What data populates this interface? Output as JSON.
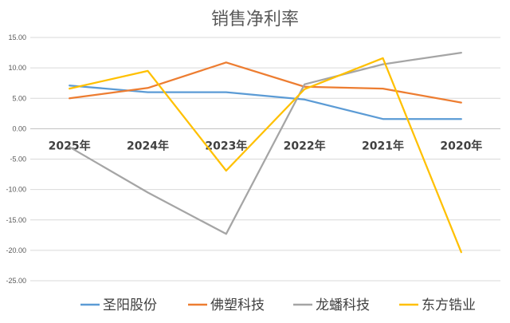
{
  "chart_data": {
    "type": "line",
    "title": "销售净利率",
    "categories": [
      "2025年",
      "2024年",
      "2023年",
      "2022年",
      "2021年",
      "2020年"
    ],
    "ylim": [
      -25,
      15
    ],
    "yticks": [
      "15.00",
      "10.00",
      "5.00",
      "0.00",
      "-5.00",
      "-10.00",
      "-15.00",
      "-20.00",
      "-25.00"
    ],
    "grid": true,
    "legend_position": "bottom",
    "series": [
      {
        "name": "圣阳股份",
        "color": "#5B9BD5",
        "values": [
          7.1,
          6.0,
          6.0,
          4.8,
          1.6,
          1.6
        ]
      },
      {
        "name": "佛塑科技",
        "color": "#ED7D31",
        "values": [
          5.0,
          6.7,
          10.9,
          6.9,
          6.6,
          4.3
        ]
      },
      {
        "name": "龙蟠科技",
        "color": "#A5A5A5",
        "values": [
          -3.0,
          -10.5,
          -17.3,
          7.3,
          10.6,
          12.5
        ]
      },
      {
        "name": "东方锆业",
        "color": "#FFC000",
        "values": [
          6.6,
          9.5,
          -6.9,
          6.5,
          11.6,
          -20.3
        ]
      }
    ]
  }
}
